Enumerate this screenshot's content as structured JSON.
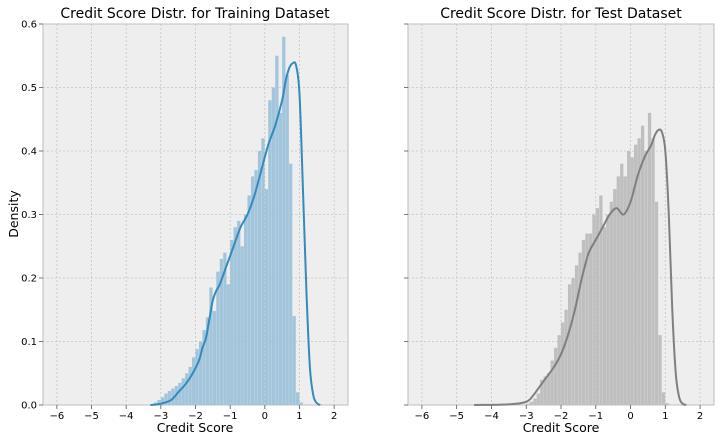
{
  "chart_data": [
    {
      "type": "histogram",
      "title": "Credit Score Distr. for Training Dataset",
      "xlabel": "Credit Score",
      "ylabel": "Density",
      "xlim": [
        -6.4,
        2.4
      ],
      "ylim": [
        0,
        0.6
      ],
      "xticks": [
        -6,
        -5,
        -4,
        -3,
        -2,
        -1,
        0,
        1,
        2
      ],
      "yticks": [
        0.0,
        0.1,
        0.2,
        0.3,
        0.4,
        0.5,
        0.6
      ],
      "grid": true,
      "bar_color": "#a2c5dc",
      "kde_color": "#348abd",
      "bins": {
        "start": -3.3,
        "width": 0.1,
        "density": [
          0.0,
          0.004,
          0.008,
          0.012,
          0.018,
          0.022,
          0.026,
          0.03,
          0.035,
          0.042,
          0.05,
          0.06,
          0.075,
          0.088,
          0.1,
          0.118,
          0.138,
          0.185,
          0.148,
          0.21,
          0.23,
          0.24,
          0.19,
          0.26,
          0.28,
          0.29,
          0.25,
          0.3,
          0.33,
          0.36,
          0.37,
          0.4,
          0.42,
          0.34,
          0.48,
          0.5,
          0.55,
          0.46,
          0.58,
          0.52,
          0.38,
          0.14,
          0.02,
          0.004
        ]
      },
      "kde": {
        "x": [
          -3.3,
          -3.0,
          -2.7,
          -2.5,
          -2.3,
          -2.1,
          -1.9,
          -1.8,
          -1.7,
          -1.6,
          -1.5,
          -1.4,
          -1.3,
          -1.1,
          -0.9,
          -0.7,
          -0.5,
          -0.3,
          -0.1,
          0.1,
          0.3,
          0.5,
          0.6,
          0.7,
          0.8,
          0.9,
          1.0,
          1.1,
          1.2,
          1.3,
          1.4,
          1.5,
          1.6
        ],
        "y": [
          0.0,
          0.002,
          0.008,
          0.02,
          0.032,
          0.048,
          0.07,
          0.09,
          0.105,
          0.135,
          0.165,
          0.18,
          0.19,
          0.22,
          0.25,
          0.28,
          0.3,
          0.33,
          0.37,
          0.41,
          0.44,
          0.48,
          0.51,
          0.53,
          0.538,
          0.535,
          0.49,
          0.34,
          0.18,
          0.06,
          0.015,
          0.003,
          0.0
        ]
      }
    },
    {
      "type": "histogram",
      "title": "Credit Score Distr. for Test Dataset",
      "xlabel": "Credit Score",
      "ylabel": "",
      "xlim": [
        -6.4,
        2.4
      ],
      "ylim": [
        0,
        0.6
      ],
      "xticks": [
        -6,
        -5,
        -4,
        -3,
        -2,
        -1,
        0,
        1,
        2
      ],
      "yticks": [
        0.0,
        0.1,
        0.2,
        0.3,
        0.4,
        0.5,
        0.6
      ],
      "grid": true,
      "bar_color": "#bfbfbf",
      "kde_color": "#7f7f7f",
      "bins": {
        "start": -3.0,
        "width": 0.1,
        "density": [
          0.002,
          0.005,
          0.01,
          0.018,
          0.04,
          0.045,
          0.05,
          0.07,
          0.09,
          0.11,
          0.13,
          0.15,
          0.19,
          0.2,
          0.22,
          0.24,
          0.26,
          0.27,
          0.27,
          0.3,
          0.31,
          0.33,
          0.28,
          0.3,
          0.32,
          0.34,
          0.36,
          0.38,
          0.36,
          0.4,
          0.39,
          0.41,
          0.42,
          0.44,
          0.4,
          0.46,
          0.42,
          0.32,
          0.11,
          0.02,
          0.003
        ]
      },
      "kde": {
        "x": [
          -4.5,
          -3.5,
          -3.0,
          -2.8,
          -2.6,
          -2.4,
          -2.2,
          -2.0,
          -1.8,
          -1.6,
          -1.4,
          -1.2,
          -1.0,
          -0.8,
          -0.6,
          -0.4,
          -0.2,
          0.0,
          0.2,
          0.4,
          0.6,
          0.7,
          0.8,
          0.9,
          1.0,
          1.1,
          1.2,
          1.3,
          1.4,
          1.5,
          1.6
        ],
        "y": [
          0.0,
          0.001,
          0.005,
          0.015,
          0.03,
          0.045,
          0.06,
          0.08,
          0.11,
          0.15,
          0.2,
          0.24,
          0.26,
          0.28,
          0.3,
          0.31,
          0.3,
          0.32,
          0.36,
          0.39,
          0.41,
          0.425,
          0.433,
          0.43,
          0.4,
          0.3,
          0.15,
          0.05,
          0.012,
          0.002,
          0.0
        ]
      }
    }
  ]
}
